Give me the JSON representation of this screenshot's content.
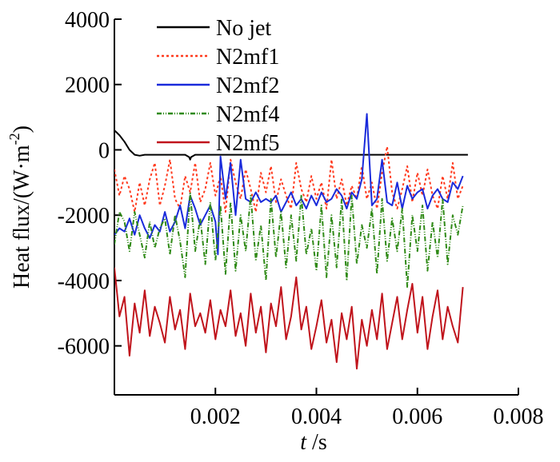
{
  "chart_data": {
    "type": "line",
    "title": "",
    "xlabel": "t /s",
    "xlabel_italic": "t",
    "xlabel_unit": " /s",
    "ylabel": "Heat flux/(W·m⁻²)",
    "ylabel_main": "Heat flux/(W·m",
    "ylabel_sup": "-2",
    "ylabel_close": ")",
    "xlim": [
      0,
      0.008
    ],
    "ylim": [
      -7500,
      4000
    ],
    "xticks": [
      0.002,
      0.004,
      0.006,
      0.008
    ],
    "xtick_labels": [
      "0.002",
      "0.004",
      "0.006",
      "0.008"
    ],
    "yticks": [
      4000,
      2000,
      0,
      -2000,
      -4000,
      -6000
    ],
    "ytick_labels": [
      "4000",
      "2000",
      "0",
      "-2000",
      "-4000",
      "-6000"
    ],
    "grid": false,
    "legend_position": "top-left",
    "series": [
      {
        "name": "No jet",
        "color": "#000000",
        "dash": "",
        "x": [
          0,
          0.0001,
          0.0002,
          0.0003,
          0.0004,
          0.0005,
          0.0006,
          0.0008,
          0.001,
          0.0012,
          0.0014,
          0.00148,
          0.0015,
          0.00152,
          0.0016,
          0.002,
          0.003,
          0.004,
          0.005,
          0.006,
          0.007
        ],
        "y": [
          600,
          450,
          250,
          0,
          -150,
          -180,
          -150,
          -150,
          -150,
          -150,
          -150,
          -220,
          -300,
          -220,
          -150,
          -150,
          -150,
          -150,
          -150,
          -150,
          -150
        ]
      },
      {
        "name": "N2mf1",
        "color": "#ff3b1f",
        "dash": "3,3",
        "x": [
          0,
          0.0001,
          0.0002,
          0.0003,
          0.0004,
          0.0005,
          0.0006,
          0.0007,
          0.0008,
          0.0009,
          0.001,
          0.0011,
          0.0012,
          0.0013,
          0.0014,
          0.0015,
          0.0016,
          0.0017,
          0.0018,
          0.0019,
          0.002,
          0.0021,
          0.0022,
          0.0023,
          0.0024,
          0.0025,
          0.0026,
          0.0027,
          0.0028,
          0.0029,
          0.003,
          0.0031,
          0.0032,
          0.0033,
          0.0034,
          0.0035,
          0.0036,
          0.0037,
          0.0038,
          0.0039,
          0.004,
          0.0041,
          0.0042,
          0.0043,
          0.0044,
          0.0045,
          0.0046,
          0.0047,
          0.0048,
          0.0049,
          0.005,
          0.0051,
          0.0052,
          0.0053,
          0.0054,
          0.0055,
          0.0056,
          0.0057,
          0.0058,
          0.0059,
          0.006,
          0.0061,
          0.0062,
          0.0063,
          0.0064,
          0.0065,
          0.0066,
          0.0067,
          0.0068,
          0.0069
        ],
        "y": [
          -600,
          -1400,
          -800,
          -1200,
          -1900,
          -1000,
          -1700,
          -900,
          -400,
          -1700,
          -1100,
          -300,
          -1500,
          -1800,
          -800,
          -1300,
          -400,
          -1600,
          -1200,
          -400,
          -1400,
          -800,
          -1900,
          -300,
          -1000,
          -1500,
          -600,
          -1200,
          -1900,
          -700,
          -1300,
          -500,
          -1600,
          -900,
          -1400,
          -1800,
          -400,
          -1200,
          -1600,
          -800,
          -1500,
          -1000,
          -1800,
          -300,
          -1500,
          -900,
          -1700,
          -1100,
          -1500,
          -500,
          -1500,
          -1000,
          -1800,
          -700,
          100,
          -1300,
          -1800,
          -1200,
          -500,
          -1600,
          -700,
          -1400,
          -600,
          -1400,
          -1800,
          -800,
          -1500,
          -400,
          -1500,
          -1100
        ]
      },
      {
        "name": "N2mf2",
        "color": "#1a2bdb",
        "dash": "",
        "x": [
          0,
          0.0001,
          0.0002,
          0.0003,
          0.0004,
          0.0005,
          0.0006,
          0.0007,
          0.0008,
          0.0009,
          0.001,
          0.0011,
          0.0012,
          0.0013,
          0.0014,
          0.0015,
          0.0016,
          0.0017,
          0.0018,
          0.0019,
          0.002,
          0.00205,
          0.0021,
          0.0022,
          0.0023,
          0.0024,
          0.0025,
          0.0026,
          0.0027,
          0.0028,
          0.0029,
          0.003,
          0.0031,
          0.0032,
          0.0033,
          0.0034,
          0.0035,
          0.0036,
          0.0037,
          0.0038,
          0.0039,
          0.004,
          0.0041,
          0.0042,
          0.0043,
          0.0044,
          0.0045,
          0.0046,
          0.0047,
          0.0048,
          0.0049,
          0.005,
          0.0051,
          0.0052,
          0.0053,
          0.0054,
          0.0055,
          0.0056,
          0.0057,
          0.0058,
          0.0059,
          0.006,
          0.0061,
          0.0062,
          0.0063,
          0.0064,
          0.0065,
          0.0066,
          0.0067,
          0.0068,
          0.0069
        ],
        "y": [
          -2600,
          -2400,
          -2500,
          -2100,
          -2600,
          -2000,
          -2400,
          -2700,
          -2300,
          -2500,
          -1900,
          -2500,
          -2200,
          -1700,
          -2400,
          -1400,
          -1800,
          -2300,
          -2000,
          -1700,
          -2200,
          -3200,
          -200,
          -1500,
          -400,
          -2000,
          -300,
          -1500,
          -1600,
          -1300,
          -1600,
          -1500,
          -1600,
          -1400,
          -1900,
          -1600,
          -1300,
          -1700,
          -1500,
          -1800,
          -1400,
          -1700,
          -1300,
          -1600,
          -1500,
          -1200,
          -1400,
          -1800,
          -1300,
          -1500,
          -900,
          1100,
          -1700,
          -1500,
          -300,
          -1600,
          -1700,
          -1000,
          -1800,
          -1100,
          -1500,
          -1300,
          -1200,
          -1800,
          -1400,
          -1200,
          -1500,
          -1600,
          -1000,
          -1200,
          -800
        ]
      },
      {
        "name": "N2mf4",
        "color": "#2f8a16",
        "dash": "6,2,1,2,1,2",
        "x": [
          0,
          0.0001,
          0.0002,
          0.0003,
          0.0004,
          0.0005,
          0.0006,
          0.0007,
          0.0008,
          0.0009,
          0.001,
          0.0011,
          0.0012,
          0.0013,
          0.0014,
          0.0015,
          0.0016,
          0.0017,
          0.0018,
          0.0019,
          0.002,
          0.0021,
          0.0022,
          0.0023,
          0.0024,
          0.0025,
          0.0026,
          0.0027,
          0.0028,
          0.0029,
          0.003,
          0.0031,
          0.0032,
          0.0033,
          0.0034,
          0.0035,
          0.0036,
          0.0037,
          0.0038,
          0.0039,
          0.004,
          0.0041,
          0.0042,
          0.0043,
          0.0044,
          0.0045,
          0.0046,
          0.0047,
          0.0048,
          0.0049,
          0.005,
          0.0051,
          0.0052,
          0.0053,
          0.0054,
          0.0055,
          0.0056,
          0.0057,
          0.0058,
          0.0059,
          0.006,
          0.0061,
          0.0062,
          0.0063,
          0.0064,
          0.0065,
          0.0066,
          0.0067,
          0.0068,
          0.0069
        ],
        "y": [
          -2900,
          -1900,
          -2200,
          -3100,
          -1900,
          -2600,
          -3300,
          -2200,
          -3000,
          -2400,
          -2100,
          -3200,
          -2000,
          -2800,
          -3900,
          -1300,
          -3100,
          -2100,
          -3500,
          -1600,
          -3400,
          -1700,
          -3800,
          -1600,
          -3700,
          -2000,
          -3100,
          -1400,
          -3400,
          -2300,
          -4000,
          -1500,
          -3300,
          -1900,
          -3600,
          -2000,
          -3400,
          -1400,
          -3200,
          -2400,
          -3700,
          -1700,
          -3900,
          -2000,
          -3600,
          -1500,
          -4000,
          -1400,
          -3500,
          -2300,
          -3000,
          -1800,
          -3800,
          -1500,
          -3400,
          -2100,
          -3100,
          -1800,
          -4200,
          -2000,
          -3100,
          -1700,
          -3700,
          -2200,
          -3300,
          -1500,
          -3500,
          -2000,
          -2600,
          -1700
        ]
      },
      {
        "name": "N2mf5",
        "color": "#c0141c",
        "dash": "",
        "x": [
          0,
          0.0001,
          0.0002,
          0.0003,
          0.0004,
          0.0005,
          0.0006,
          0.0007,
          0.0008,
          0.0009,
          0.001,
          0.0011,
          0.0012,
          0.0013,
          0.0014,
          0.0015,
          0.0016,
          0.0017,
          0.0018,
          0.0019,
          0.002,
          0.0021,
          0.0022,
          0.0023,
          0.0024,
          0.0025,
          0.0026,
          0.0027,
          0.0028,
          0.0029,
          0.003,
          0.0031,
          0.0032,
          0.0033,
          0.0034,
          0.0035,
          0.0036,
          0.0037,
          0.0038,
          0.0039,
          0.004,
          0.0041,
          0.0042,
          0.0043,
          0.0044,
          0.0045,
          0.0046,
          0.0047,
          0.0048,
          0.0049,
          0.005,
          0.0051,
          0.0052,
          0.0053,
          0.0054,
          0.0055,
          0.0056,
          0.0057,
          0.0058,
          0.0059,
          0.006,
          0.0061,
          0.0062,
          0.0063,
          0.0064,
          0.0065,
          0.0066,
          0.0067,
          0.0068,
          0.0069
        ],
        "y": [
          -3600,
          -5100,
          -4500,
          -6300,
          -4700,
          -5600,
          -4300,
          -5700,
          -4800,
          -5300,
          -5900,
          -4500,
          -5500,
          -4900,
          -6100,
          -4400,
          -5400,
          -5000,
          -5600,
          -4600,
          -5800,
          -4900,
          -5400,
          -4300,
          -5700,
          -5000,
          -6000,
          -4400,
          -5600,
          -4800,
          -6200,
          -4700,
          -5400,
          -4200,
          -5800,
          -5100,
          -3900,
          -5500,
          -4800,
          -6100,
          -5400,
          -4600,
          -5900,
          -5200,
          -6500,
          -5000,
          -5800,
          -4800,
          -6700,
          -5200,
          -6000,
          -4900,
          -5800,
          -4400,
          -6100,
          -5300,
          -4500,
          -5800,
          -4900,
          -4100,
          -5600,
          -4500,
          -6100,
          -5100,
          -4300,
          -5800,
          -4800,
          -5400,
          -5900,
          -4200
        ]
      }
    ]
  }
}
